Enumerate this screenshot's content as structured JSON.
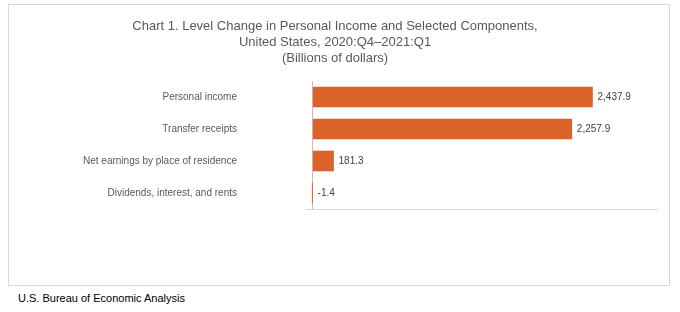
{
  "chart_data": {
    "type": "bar",
    "orientation": "horizontal",
    "title": "Chart 1. Level Change in Personal Income and Selected Components, United States, 2020:Q4–2021:Q1",
    "subtitle": "(Billions of dollars)",
    "source": "U.S. Bureau of Economic Analysis",
    "categories": [
      "Personal income",
      "Transfer receipts",
      "Net earnings by place of residence",
      "Dividends, interest, and rents"
    ],
    "values": [
      2437.9,
      2257.9,
      181.3,
      -1.4
    ],
    "value_labels": [
      "2,437.9",
      "2,257.9",
      "181.3",
      "-1.4"
    ],
    "color": "#DB6229",
    "xlim": [
      -50,
      3000
    ],
    "xticks": [
      0
    ],
    "grid": true,
    "data_labels": true,
    "tick_labels": "y"
  }
}
